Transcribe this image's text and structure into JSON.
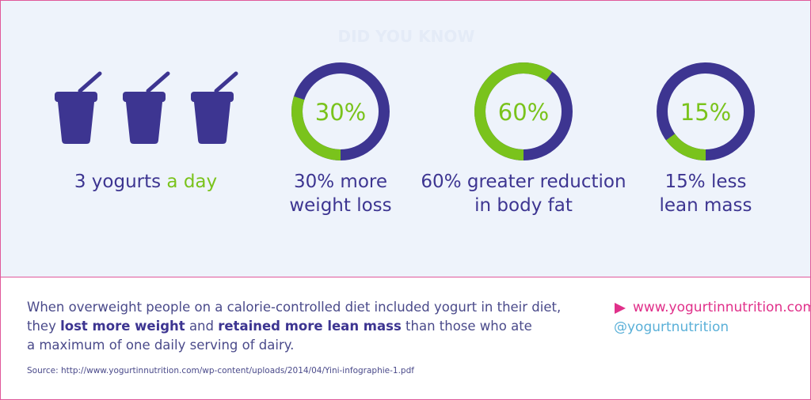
{
  "header": {
    "title": "DID YOU KNOW"
  },
  "yogurts": {
    "caption": [
      "3 yogurts",
      "a day"
    ]
  },
  "donuts": [
    {
      "value": 30,
      "value_label": "30%",
      "caption": [
        "30% more",
        "weight loss"
      ]
    },
    {
      "value": 60,
      "value_label": "60%",
      "caption": [
        "60% greater reduction",
        "in body fat"
      ]
    },
    {
      "value": 15,
      "value_label": "15%",
      "caption": [
        "15% less",
        "lean mass"
      ]
    }
  ],
  "colors": {
    "ring": "#3d3591",
    "highlight": "#7ac31c"
  },
  "body": {
    "lines": [
      [
        {
          "text": "When overweight people on a calorie-controlled diet included yogurt in their diet,",
          "bold": false
        }
      ],
      [
        {
          "text": "they",
          "bold": false
        },
        {
          "text": "lost more weight",
          "bold": true
        },
        {
          "text": "and",
          "bold": false
        },
        {
          "text": "retained more lean mass",
          "bold": true
        },
        {
          "text": "than those who ate",
          "bold": false
        }
      ],
      [
        {
          "text": "a maximum of one daily serving of dairy.",
          "bold": false
        }
      ]
    ]
  },
  "links": {
    "website": "www.yogurtinnutrition.com",
    "twitter": "@yogurtnutrition"
  },
  "source": "Source: http://www.yogurtinnutrition.com/wp-content/uploads/2014/04/Yini-infographie-1.pdf"
}
